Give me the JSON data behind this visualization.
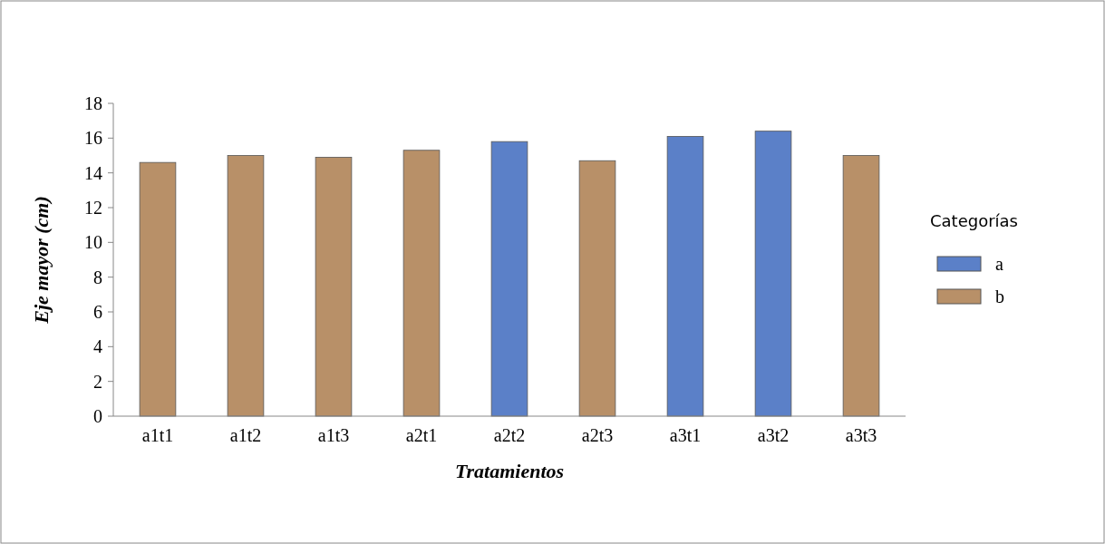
{
  "chart_data": {
    "type": "bar",
    "xlabel": "Tratamientos",
    "ylabel": "Eje mayor (cm)",
    "legend_title": "Categorías",
    "legend": "right",
    "categories": [
      "a1t1",
      "a1t2",
      "a1t3",
      "a2t1",
      "a2t2",
      "a2t3",
      "a3t1",
      "a3t2",
      "a3t3"
    ],
    "series": [
      {
        "name": "a",
        "color": "#5b80c8",
        "values": [
          null,
          null,
          null,
          null,
          15.8,
          null,
          16.1,
          16.4,
          null
        ]
      },
      {
        "name": "b",
        "color": "#b89068",
        "values": [
          14.6,
          15.0,
          14.9,
          15.3,
          null,
          14.7,
          null,
          null,
          15.0
        ]
      }
    ],
    "ylim": [
      0,
      18
    ],
    "yticks": [
      0,
      2,
      4,
      6,
      8,
      10,
      12,
      14,
      16,
      18
    ]
  }
}
